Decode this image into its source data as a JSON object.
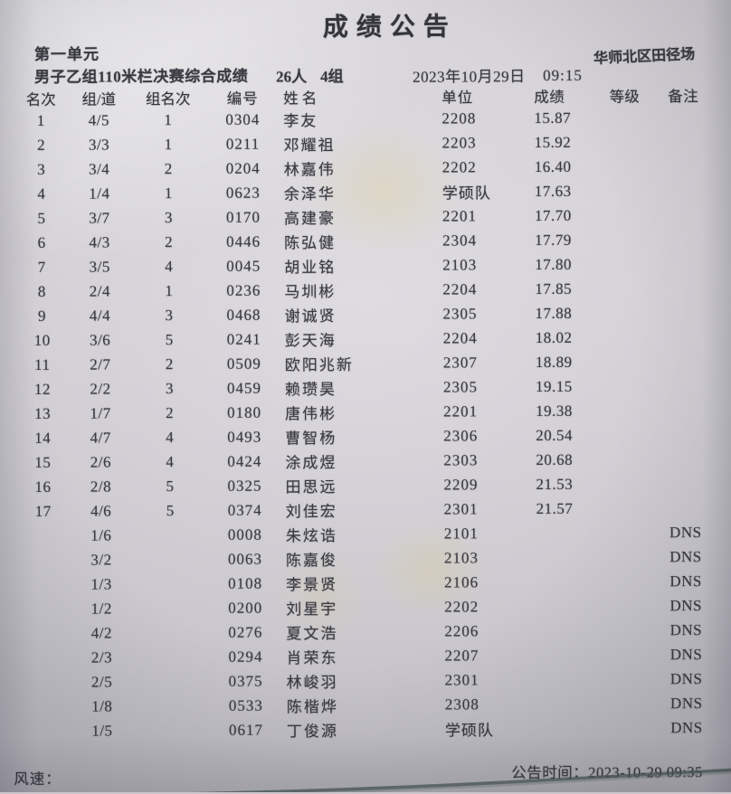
{
  "page": {
    "title": "成绩公告"
  },
  "header": {
    "session": "第一单元",
    "venue": "华师北区田径场",
    "event_name": "男子乙组110米栏决赛综合成绩",
    "participants": "26人",
    "groups": "4组",
    "date": "2023年10月29日",
    "time": "09:15"
  },
  "table": {
    "columns": [
      "名次",
      "组/道",
      "组名次",
      "编号",
      "姓名",
      "单位",
      "成绩",
      "等级",
      "备注"
    ],
    "rows": [
      {
        "rank": "1",
        "group_lane": "4/5",
        "group_rank": "1",
        "number": "0304",
        "name": "李友",
        "unit": "2208",
        "result": "15.87",
        "grade": "",
        "remark": ""
      },
      {
        "rank": "2",
        "group_lane": "3/3",
        "group_rank": "1",
        "number": "0211",
        "name": "邓耀祖",
        "unit": "2203",
        "result": "15.92",
        "grade": "",
        "remark": ""
      },
      {
        "rank": "3",
        "group_lane": "3/4",
        "group_rank": "2",
        "number": "0204",
        "name": "林嘉伟",
        "unit": "2202",
        "result": "16.40",
        "grade": "",
        "remark": ""
      },
      {
        "rank": "4",
        "group_lane": "1/4",
        "group_rank": "1",
        "number": "0623",
        "name": "余泽华",
        "unit": "学硕队",
        "result": "17.63",
        "grade": "",
        "remark": ""
      },
      {
        "rank": "5",
        "group_lane": "3/7",
        "group_rank": "3",
        "number": "0170",
        "name": "高建豪",
        "unit": "2201",
        "result": "17.70",
        "grade": "",
        "remark": ""
      },
      {
        "rank": "6",
        "group_lane": "4/3",
        "group_rank": "2",
        "number": "0446",
        "name": "陈弘健",
        "unit": "2304",
        "result": "17.79",
        "grade": "",
        "remark": ""
      },
      {
        "rank": "7",
        "group_lane": "3/5",
        "group_rank": "4",
        "number": "0045",
        "name": "胡业铭",
        "unit": "2103",
        "result": "17.80",
        "grade": "",
        "remark": ""
      },
      {
        "rank": "8",
        "group_lane": "2/4",
        "group_rank": "1",
        "number": "0236",
        "name": "马圳彬",
        "unit": "2204",
        "result": "17.85",
        "grade": "",
        "remark": ""
      },
      {
        "rank": "9",
        "group_lane": "4/4",
        "group_rank": "3",
        "number": "0468",
        "name": "谢诚贤",
        "unit": "2305",
        "result": "17.88",
        "grade": "",
        "remark": ""
      },
      {
        "rank": "10",
        "group_lane": "3/6",
        "group_rank": "5",
        "number": "0241",
        "name": "彭天海",
        "unit": "2204",
        "result": "18.02",
        "grade": "",
        "remark": ""
      },
      {
        "rank": "11",
        "group_lane": "2/7",
        "group_rank": "2",
        "number": "0509",
        "name": "欧阳兆新",
        "unit": "2307",
        "result": "18.89",
        "grade": "",
        "remark": ""
      },
      {
        "rank": "12",
        "group_lane": "2/2",
        "group_rank": "3",
        "number": "0459",
        "name": "赖瓒昊",
        "unit": "2305",
        "result": "19.15",
        "grade": "",
        "remark": ""
      },
      {
        "rank": "13",
        "group_lane": "1/7",
        "group_rank": "2",
        "number": "0180",
        "name": "唐伟彬",
        "unit": "2201",
        "result": "19.38",
        "grade": "",
        "remark": ""
      },
      {
        "rank": "14",
        "group_lane": "4/7",
        "group_rank": "4",
        "number": "0493",
        "name": "曹智杨",
        "unit": "2306",
        "result": "20.54",
        "grade": "",
        "remark": ""
      },
      {
        "rank": "15",
        "group_lane": "2/6",
        "group_rank": "4",
        "number": "0424",
        "name": "涂成煜",
        "unit": "2303",
        "result": "20.68",
        "grade": "",
        "remark": ""
      },
      {
        "rank": "16",
        "group_lane": "2/8",
        "group_rank": "5",
        "number": "0325",
        "name": "田思远",
        "unit": "2209",
        "result": "21.53",
        "grade": "",
        "remark": ""
      },
      {
        "rank": "17",
        "group_lane": "4/6",
        "group_rank": "5",
        "number": "0374",
        "name": "刘佳宏",
        "unit": "2301",
        "result": "21.57",
        "grade": "",
        "remark": ""
      },
      {
        "rank": "",
        "group_lane": "1/6",
        "group_rank": "",
        "number": "0008",
        "name": "朱炫诰",
        "unit": "2101",
        "result": "",
        "grade": "",
        "remark": "DNS"
      },
      {
        "rank": "",
        "group_lane": "3/2",
        "group_rank": "",
        "number": "0063",
        "name": "陈嘉俊",
        "unit": "2103",
        "result": "",
        "grade": "",
        "remark": "DNS"
      },
      {
        "rank": "",
        "group_lane": "1/3",
        "group_rank": "",
        "number": "0108",
        "name": "李景贤",
        "unit": "2106",
        "result": "",
        "grade": "",
        "remark": "DNS"
      },
      {
        "rank": "",
        "group_lane": "1/2",
        "group_rank": "",
        "number": "0200",
        "name": "刘星宇",
        "unit": "2202",
        "result": "",
        "grade": "",
        "remark": "DNS"
      },
      {
        "rank": "",
        "group_lane": "4/2",
        "group_rank": "",
        "number": "0276",
        "name": "夏文浩",
        "unit": "2206",
        "result": "",
        "grade": "",
        "remark": "DNS"
      },
      {
        "rank": "",
        "group_lane": "2/3",
        "group_rank": "",
        "number": "0294",
        "name": "肖荣东",
        "unit": "2207",
        "result": "",
        "grade": "",
        "remark": "DNS"
      },
      {
        "rank": "",
        "group_lane": "2/5",
        "group_rank": "",
        "number": "0375",
        "name": "林峻羽",
        "unit": "2301",
        "result": "",
        "grade": "",
        "remark": "DNS"
      },
      {
        "rank": "",
        "group_lane": "1/8",
        "group_rank": "",
        "number": "0533",
        "name": "陈楷烨",
        "unit": "2308",
        "result": "",
        "grade": "",
        "remark": "DNS"
      },
      {
        "rank": "",
        "group_lane": "1/5",
        "group_rank": "",
        "number": "0617",
        "name": "丁俊源",
        "unit": "学硕队",
        "result": "",
        "grade": "",
        "remark": "DNS"
      }
    ]
  },
  "footer": {
    "wind_label": "风速：",
    "announce_label": "公告时间：",
    "announce_value": "2023-10-29 09:35"
  },
  "colors": {
    "paper": "#c9c7cc",
    "ink": "#3a3b42",
    "watermark_yellow": "#e2ce6e",
    "paper_edge": "#4e5c59"
  }
}
